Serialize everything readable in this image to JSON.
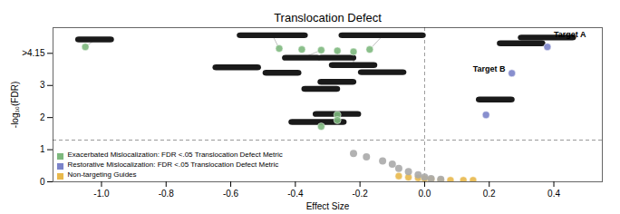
{
  "chart_data": {
    "type": "scatter",
    "title": "Translocation Defect",
    "xlabel": "Effect Size",
    "ylabel": "-log₁₀(FDR)",
    "xlim": [
      -1.15,
      0.55
    ],
    "ylim": [
      0,
      4.8
    ],
    "xticks": [
      {
        "value": -1.0,
        "label": "-1.0"
      },
      {
        "value": -0.8,
        "label": "-0.8"
      },
      {
        "value": -0.6,
        "label": "-0.6"
      },
      {
        "value": -0.4,
        "label": "-0.4"
      },
      {
        "value": -0.2,
        "label": "-0.2"
      },
      {
        "value": 0.0,
        "label": "0.0"
      },
      {
        "value": 0.2,
        "label": "0.2"
      },
      {
        "value": 0.4,
        "label": "0.4"
      }
    ],
    "yticks": [
      0,
      1,
      2,
      3,
      {
        "value": 4,
        "label": ">4.15"
      }
    ],
    "grid": false,
    "legend": "lower left",
    "hlines": [
      1.3
    ],
    "vlines": [
      0.0
    ],
    "connectors": [
      [
        [
          -1.05,
          4.2
        ],
        [
          -1.02,
          4.42
        ]
      ],
      [
        [
          -0.45,
          4.15
        ],
        [
          -0.47,
          4.55
        ]
      ],
      [
        [
          -0.32,
          4.1
        ],
        [
          -0.38,
          3.85
        ]
      ],
      [
        [
          -0.27,
          4.08
        ],
        [
          -0.27,
          3.85
        ]
      ],
      [
        [
          -0.22,
          4.05
        ],
        [
          -0.22,
          3.62
        ]
      ],
      [
        [
          -0.17,
          4.12
        ],
        [
          -0.13,
          4.55
        ]
      ]
    ],
    "blobs": {
      "color": "#1a1a1a",
      "x": [
        -1.02,
        -0.47,
        -0.13,
        -0.58,
        -0.44,
        -0.38,
        -0.27,
        -0.22,
        -0.13,
        -0.27,
        -0.32,
        -0.27,
        -0.33,
        0.22,
        0.38,
        0.3
      ],
      "y": [
        4.42,
        4.55,
        4.55,
        3.55,
        3.38,
        3.85,
        3.85,
        3.62,
        3.4,
        3.1,
        2.88,
        2.1,
        1.85,
        2.55,
        4.48,
        4.3
      ],
      "w": [
        0.12,
        0.22,
        0.27,
        0.15,
        0.12,
        0.12,
        0.12,
        0.15,
        0.15,
        0.12,
        0.12,
        0.15,
        0.18,
        0.12,
        0.18,
        0.15
      ],
      "h": [
        0.18,
        0.18,
        0.18,
        0.18,
        0.18,
        0.18,
        0.18,
        0.18,
        0.18,
        0.18,
        0.18,
        0.18,
        0.18,
        0.18,
        0.18,
        0.18
      ]
    },
    "series": [
      {
        "name": "Exacerbated Mislocalization: FDR <.05 Translocation Defect Metric",
        "color": "#7db87d",
        "x": [
          -1.05,
          -0.45,
          -0.38,
          -0.32,
          -0.27,
          -0.22,
          -0.17,
          -0.27,
          -0.27,
          -0.32
        ],
        "y": [
          4.2,
          4.15,
          4.12,
          4.1,
          4.08,
          4.05,
          4.12,
          2.08,
          1.92,
          1.72
        ]
      },
      {
        "name": "Restorative Mislocalization: FDR <.05 Translocation Defect Metric",
        "color": "#7b83c9",
        "x": [
          0.19,
          0.27,
          0.38
        ],
        "y": [
          2.08,
          3.38,
          4.2
        ]
      },
      {
        "name": "Non-targeting Guides",
        "color": "#e8b84b",
        "x": [
          -0.08,
          -0.05,
          -0.02,
          0.0,
          0.02,
          0.05,
          0.08,
          0.12,
          0.15
        ],
        "y": [
          0.18,
          0.14,
          0.12,
          0.1,
          0.08,
          0.05,
          0.05,
          0.05,
          0.05
        ]
      },
      {
        "color": "#aaaaaa",
        "x": [
          -0.22,
          -0.18,
          -0.13,
          -0.1,
          -0.08,
          -0.05,
          -0.02,
          0.0,
          0.02,
          0.05
        ],
        "y": [
          0.88,
          0.78,
          0.65,
          0.55,
          0.42,
          0.32,
          0.22,
          0.15,
          0.1,
          0.08
        ]
      }
    ],
    "annotations": [
      {
        "text": "Target A",
        "x": 0.38,
        "y": 4.48,
        "dx": 0.02,
        "dy": 0.03
      },
      {
        "text": "Target B",
        "x": 0.27,
        "y": 3.38,
        "dx": -0.02,
        "dy": 0.06
      }
    ]
  }
}
